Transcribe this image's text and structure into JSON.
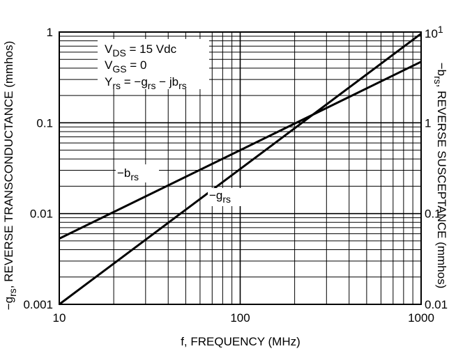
{
  "chart_data": {
    "type": "line",
    "title": "",
    "x_axis": {
      "label": "f, FREQUENCY (MHz)",
      "scale": "log",
      "range": [
        10,
        1000
      ],
      "tick_labels": [
        "10",
        "100",
        "1000"
      ]
    },
    "y_axis_left": {
      "label_prefix": "−g",
      "label_sub": "rs",
      "label_rest": ", REVERSE TRANSCONDUCTANCE (mmhos)",
      "scale": "log",
      "range": [
        0.001,
        1
      ],
      "tick_labels": [
        "1",
        "0.1",
        "0.01",
        "0.001"
      ]
    },
    "y_axis_right": {
      "label_prefix": "−b",
      "label_sub": "rs",
      "label_rest": ", REVERSE SUSCEPTANCE (mmhos)",
      "scale": "log",
      "range": [
        0.01,
        10
      ],
      "tick_labels_main": [
        "1",
        "0.1",
        "0.01"
      ],
      "tick_label_top_main": "10",
      "tick_label_top_sup": "1"
    },
    "grid": true,
    "series": [
      {
        "name_main": "−b",
        "name_sub": "rs",
        "axis": "right",
        "x": [
          10,
          1000
        ],
        "y": [
          0.053,
          4.7
        ]
      },
      {
        "name_main": "−g",
        "name_sub": "rs",
        "axis": "left",
        "x": [
          10,
          1000
        ],
        "y": [
          0.001,
          0.96
        ]
      }
    ],
    "annotations": {
      "vds_main": "V",
      "vds_sub": "DS",
      "vds_rest": " = 15 Vdc",
      "vgs_main": "V",
      "vgs_sub": "GS",
      "vgs_rest": " = 0",
      "yrs_y": "Y",
      "yrs_sub1": "rs",
      "yrs_mid": " = −g",
      "yrs_sub2": "rs",
      "yrs_mid2": " − jb",
      "yrs_sub3": "rs"
    }
  }
}
